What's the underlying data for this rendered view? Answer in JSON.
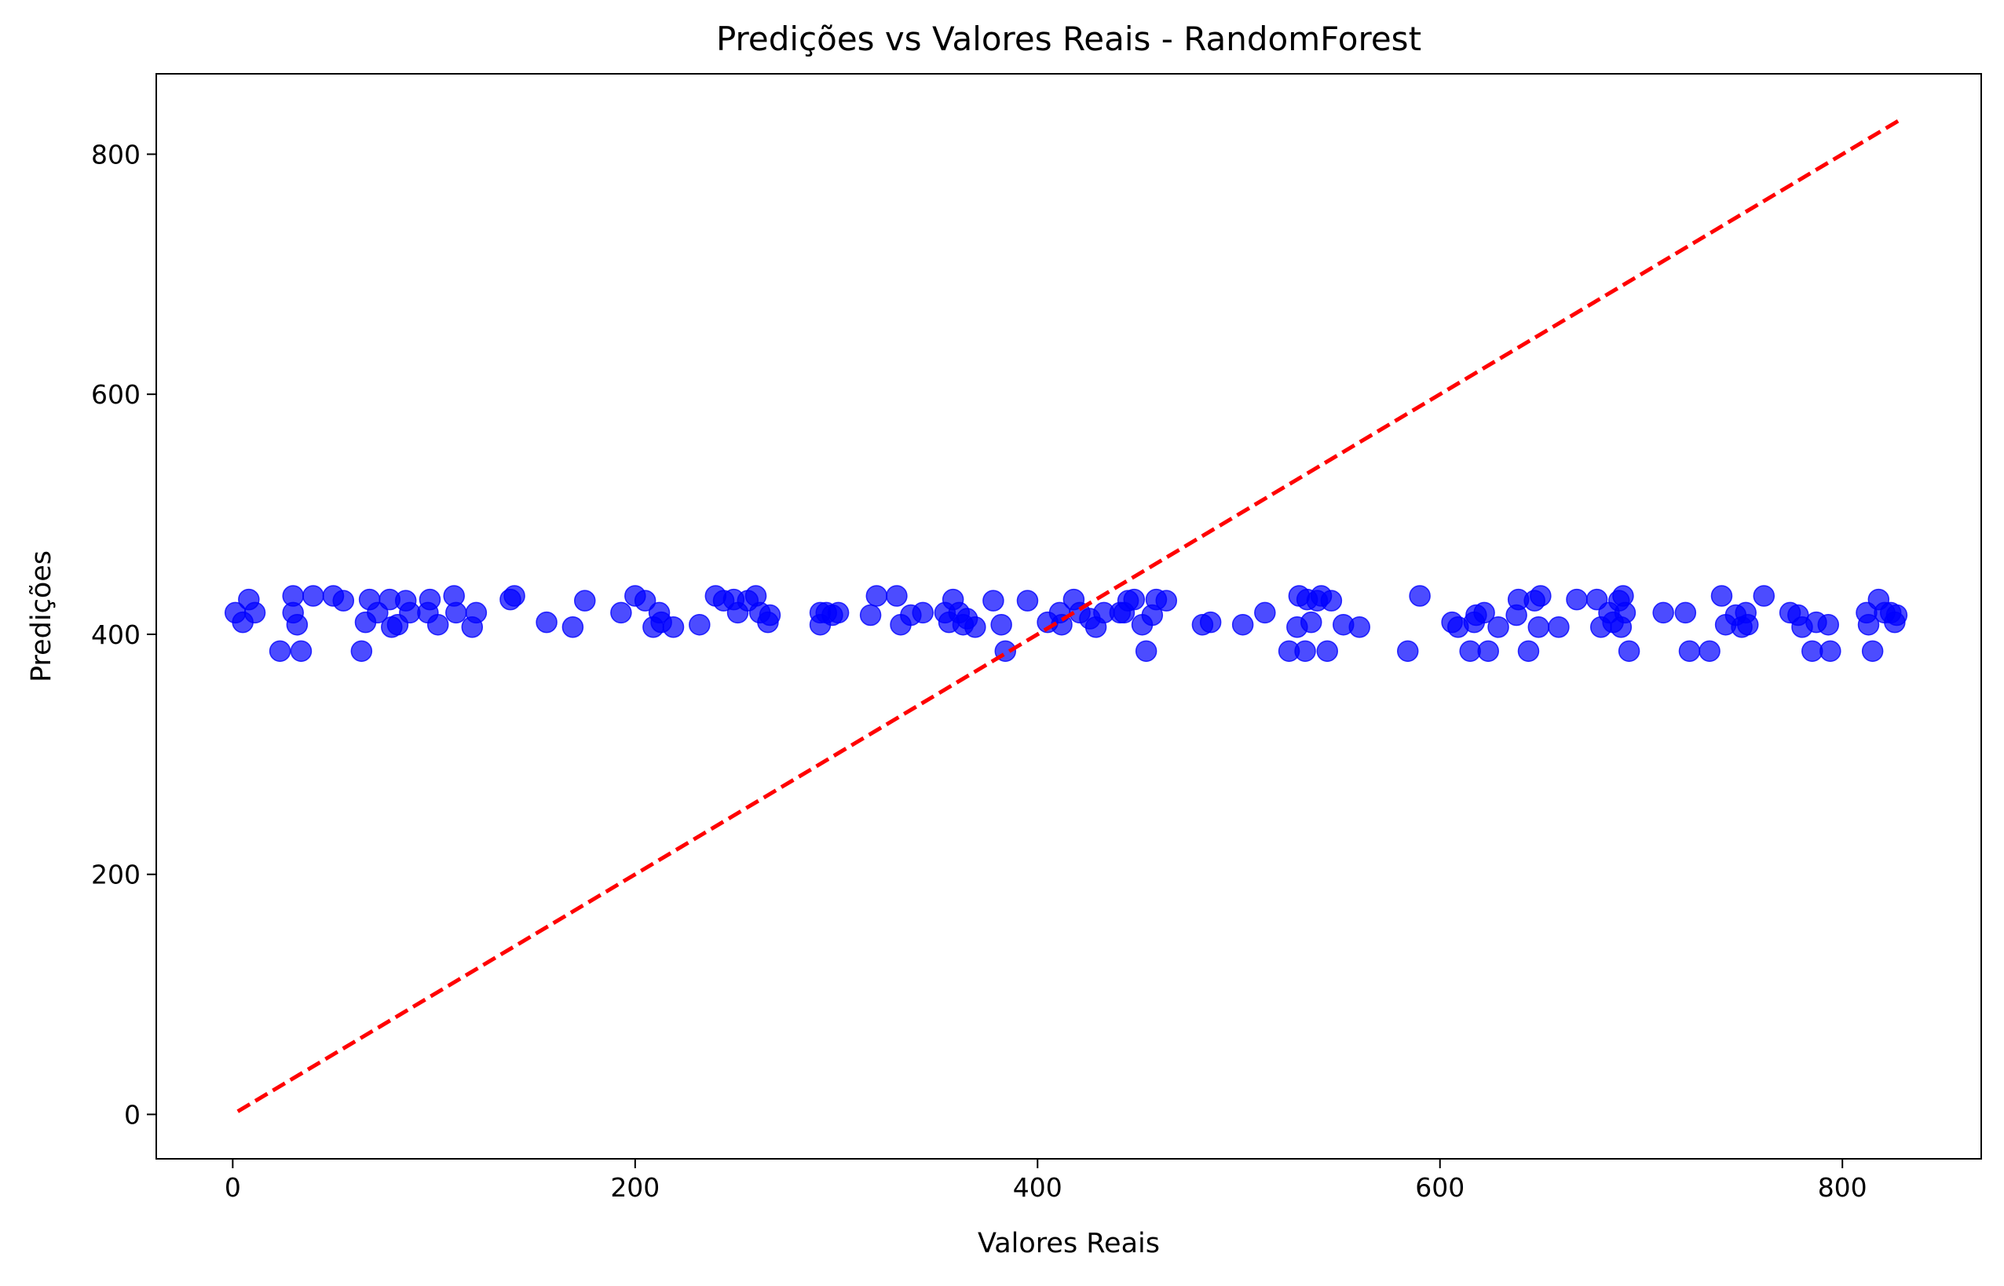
{
  "chart_data": {
    "type": "scatter",
    "title": "Predições vs Valores Reais - RandomForest",
    "xlabel": "Valores Reais",
    "ylabel": "Predições",
    "xlim": [
      -38,
      869
    ],
    "ylim": [
      -37,
      867
    ],
    "xticks": [
      0,
      200,
      400,
      600,
      800
    ],
    "yticks": [
      0,
      200,
      400,
      600,
      800
    ],
    "grid": false,
    "series": [
      {
        "color": "#0000ff",
        "x": [
          1.3,
          5,
          8,
          11,
          23.5,
          30,
          30,
          32,
          34,
          40,
          50,
          55,
          64,
          66,
          68,
          72,
          78,
          79,
          82,
          86,
          88,
          98,
          97,
          102,
          110,
          111,
          119,
          121,
          138,
          140,
          156,
          169,
          175,
          193,
          200,
          205,
          209,
          212,
          213,
          219,
          232,
          240,
          244,
          249,
          251,
          256,
          260,
          262,
          266,
          267,
          292,
          292,
          295,
          298,
          301,
          317,
          320,
          330,
          332,
          337,
          343,
          354,
          356,
          358,
          361,
          363,
          365,
          369,
          378,
          382,
          384,
          395,
          405,
          411,
          412,
          418,
          421,
          426,
          429,
          433,
          441,
          443,
          445,
          448,
          452,
          454,
          457,
          459,
          464,
          482,
          486,
          502,
          513,
          525,
          529,
          530,
          533,
          534,
          536,
          539,
          541,
          544,
          546,
          552,
          560,
          584,
          590,
          606,
          609,
          615,
          617,
          618,
          622,
          624,
          629,
          638,
          639,
          644,
          647,
          649,
          650,
          659,
          668,
          678,
          680,
          684,
          686,
          689,
          690,
          691,
          692,
          694,
          711,
          722,
          724,
          734,
          740,
          742,
          747,
          750,
          752,
          753,
          761,
          774,
          778,
          780,
          785,
          787,
          793,
          794,
          812,
          813,
          815,
          818,
          821,
          824,
          826,
          827
        ],
        "y": [
          418,
          410,
          429,
          418,
          386,
          432,
          418,
          408,
          386,
          432,
          432,
          428,
          386,
          410,
          429,
          418,
          429,
          406,
          408,
          428,
          418,
          429,
          418,
          408,
          432,
          418,
          406,
          418,
          429,
          432,
          410,
          406,
          428,
          418,
          432,
          428,
          406,
          418,
          410,
          406,
          408,
          432,
          428,
          429,
          418,
          428,
          432,
          418,
          410,
          416,
          418,
          408,
          418,
          416,
          418,
          416,
          432,
          432,
          408,
          416,
          418,
          418,
          410,
          429,
          418,
          408,
          413,
          406,
          428,
          408,
          386,
          428,
          410,
          418,
          408,
          429,
          418,
          413,
          406,
          418,
          418,
          418,
          428,
          429,
          408,
          386,
          416,
          429,
          428,
          408,
          410,
          408,
          418,
          386,
          406,
          432,
          386,
          429,
          410,
          428,
          432,
          386,
          428,
          408,
          406,
          386,
          432,
          410,
          406,
          386,
          410,
          416,
          418,
          386,
          406,
          416,
          429,
          386,
          428,
          406,
          432,
          406,
          429,
          429,
          406,
          418,
          410,
          428,
          406,
          432,
          418,
          386,
          418,
          418,
          386,
          386,
          432,
          408,
          416,
          406,
          418,
          408,
          432,
          418,
          416,
          406,
          386,
          410,
          408,
          386,
          418,
          408,
          386,
          429,
          418,
          418,
          410,
          416
        ]
      }
    ],
    "reference_line": {
      "color": "#ff0000",
      "x": [
        2.5,
        828
      ],
      "y": [
        2.5,
        828
      ]
    }
  }
}
